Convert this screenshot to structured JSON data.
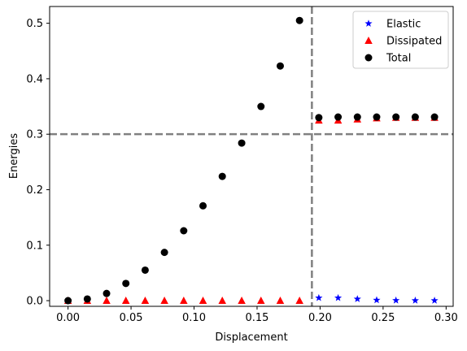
{
  "chart_data": {
    "type": "scatter",
    "xlabel": "Displacement",
    "ylabel": "Energies",
    "xlim": [
      -0.0146,
      0.3056
    ],
    "ylim": [
      -0.0102,
      0.5302
    ],
    "xticks": [
      0.0,
      0.05,
      0.1,
      0.15,
      0.2,
      0.25,
      0.3
    ],
    "xtick_labels": [
      "0.00",
      "0.05",
      "0.10",
      "0.15",
      "0.20",
      "0.25",
      "0.30"
    ],
    "yticks": [
      0.0,
      0.1,
      0.2,
      0.3,
      0.4,
      0.5
    ],
    "ytick_labels": [
      "0.0",
      "0.1",
      "0.2",
      "0.3",
      "0.4",
      "0.5"
    ],
    "reference_lines": {
      "vertical_x": 0.1935,
      "horizontal_y": 0.3,
      "color": "#808080",
      "style": "dashed"
    },
    "legend_position": "top-right",
    "grid": false,
    "series": [
      {
        "name": "Elastic",
        "marker": "star",
        "color": "#0000ff",
        "x": [
          0.199,
          0.2143,
          0.2296,
          0.2449,
          0.2602,
          0.2755,
          0.2908
        ],
        "y": [
          0.005,
          0.005,
          0.003,
          0.001,
          0.0005,
          0.0003,
          0.0002
        ]
      },
      {
        "name": "Dissipated",
        "marker": "triangle",
        "color": "#ff0000",
        "x": [
          0.0,
          0.0153,
          0.0306,
          0.0459,
          0.0612,
          0.0765,
          0.0918,
          0.1071,
          0.1224,
          0.1378,
          0.1531,
          0.1684,
          0.1837,
          0.199,
          0.2143,
          0.2296,
          0.2449,
          0.2602,
          0.2755,
          0.2908
        ],
        "y": [
          0,
          0,
          0,
          0,
          0,
          0,
          0,
          0,
          0,
          0,
          0,
          0,
          0,
          0.325,
          0.325,
          0.327,
          0.329,
          0.33,
          0.33,
          0.33
        ]
      },
      {
        "name": "Total",
        "marker": "circle",
        "color": "#000000",
        "x": [
          0.0,
          0.0153,
          0.0306,
          0.0459,
          0.0612,
          0.0765,
          0.0918,
          0.1071,
          0.1224,
          0.1378,
          0.1531,
          0.1684,
          0.1837,
          0.199,
          0.2143,
          0.2296,
          0.2449,
          0.2602,
          0.2755,
          0.2908
        ],
        "y": [
          0.0,
          0.003,
          0.013,
          0.031,
          0.055,
          0.087,
          0.126,
          0.171,
          0.224,
          0.284,
          0.35,
          0.423,
          0.505,
          0.33,
          0.331,
          0.331,
          0.331,
          0.331,
          0.331,
          0.331
        ]
      }
    ]
  }
}
